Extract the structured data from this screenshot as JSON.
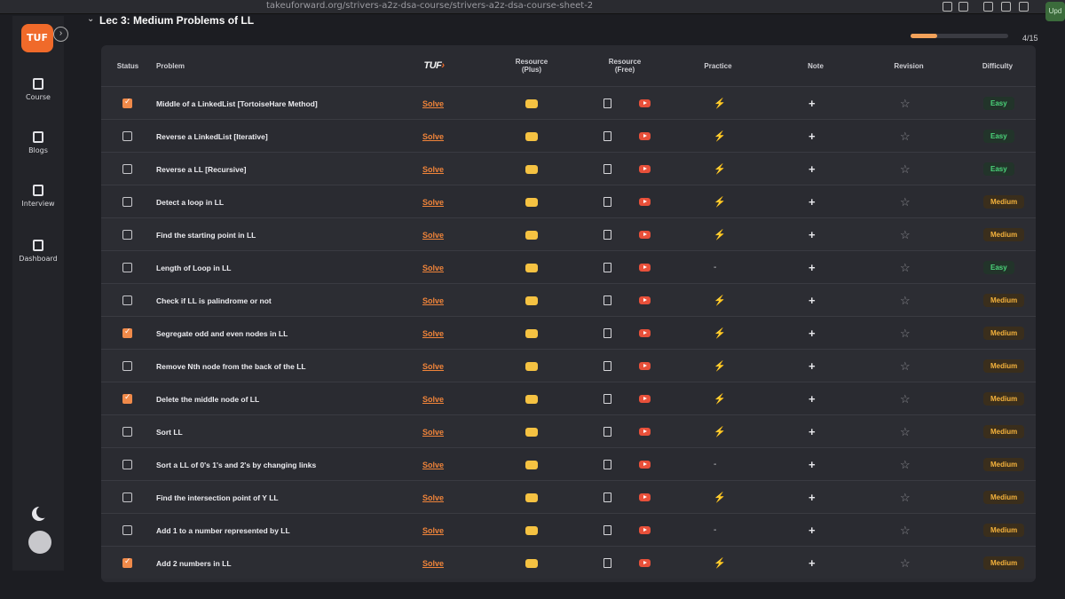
{
  "browser": {
    "url": "takeuforward.org/strivers-a2z-dsa-course/strivers-a2z-dsa-course-sheet-2",
    "update_label": "Upd"
  },
  "sidebar": {
    "logo": "TUF",
    "items": [
      {
        "label": "Course",
        "icon": "book-icon"
      },
      {
        "label": "Blogs",
        "icon": "bookmark-icon"
      },
      {
        "label": "Interview",
        "icon": "briefcase-icon"
      },
      {
        "label": "Dashboard",
        "icon": "grid-icon"
      }
    ]
  },
  "section": {
    "title": "Lec 3: Medium Problems of LL",
    "progress_label": "4/15",
    "progress_fraction": 0.27
  },
  "table": {
    "headers": {
      "status": "Status",
      "problem": "Problem",
      "tuf": "TUF",
      "resource_plus": "Resource",
      "resource_plus_sub": "(Plus)",
      "resource_free": "Resource",
      "resource_free_sub": "(Free)",
      "practice": "Practice",
      "note": "Note",
      "revision": "Revision",
      "difficulty": "Difficulty"
    },
    "solve_label": "Solve",
    "rows": [
      {
        "done": true,
        "problem": "Middle of a LinkedList [TortoiseHare Method]",
        "practice": "bolt",
        "difficulty": "Easy"
      },
      {
        "done": false,
        "problem": "Reverse a LinkedList [Iterative]",
        "practice": "bolt",
        "difficulty": "Easy"
      },
      {
        "done": false,
        "problem": "Reverse a LL [Recursive]",
        "practice": "bolt",
        "difficulty": "Easy"
      },
      {
        "done": false,
        "problem": "Detect a loop in LL",
        "practice": "bolt",
        "difficulty": "Medium"
      },
      {
        "done": false,
        "problem": "Find the starting point in LL",
        "practice": "bolt",
        "difficulty": "Medium"
      },
      {
        "done": false,
        "problem": "Length of Loop in LL",
        "practice": "dash",
        "difficulty": "Easy"
      },
      {
        "done": false,
        "problem": "Check if LL is palindrome or not",
        "practice": "bolt",
        "difficulty": "Medium"
      },
      {
        "done": true,
        "problem": "Segregate odd and even nodes in LL",
        "practice": "bolt",
        "difficulty": "Medium"
      },
      {
        "done": false,
        "problem": "Remove Nth node from the back of the LL",
        "practice": "bolt",
        "difficulty": "Medium"
      },
      {
        "done": true,
        "problem": "Delete the middle node of LL",
        "practice": "bolt",
        "difficulty": "Medium"
      },
      {
        "done": false,
        "problem": "Sort LL",
        "practice": "bolt",
        "difficulty": "Medium"
      },
      {
        "done": false,
        "problem": "Sort a LL of 0's 1's and 2's by changing links",
        "practice": "dash",
        "difficulty": "Medium"
      },
      {
        "done": false,
        "problem": "Find the intersection point of Y LL",
        "practice": "bolt",
        "difficulty": "Medium"
      },
      {
        "done": false,
        "problem": "Add 1 to a number represented by LL",
        "practice": "dash",
        "difficulty": "Medium"
      },
      {
        "done": true,
        "problem": "Add 2 numbers in LL",
        "practice": "bolt",
        "difficulty": "Medium"
      }
    ]
  },
  "colors": {
    "accent": "#f06a2a",
    "easy": "#4bd47a",
    "medium": "#f4b23c"
  }
}
